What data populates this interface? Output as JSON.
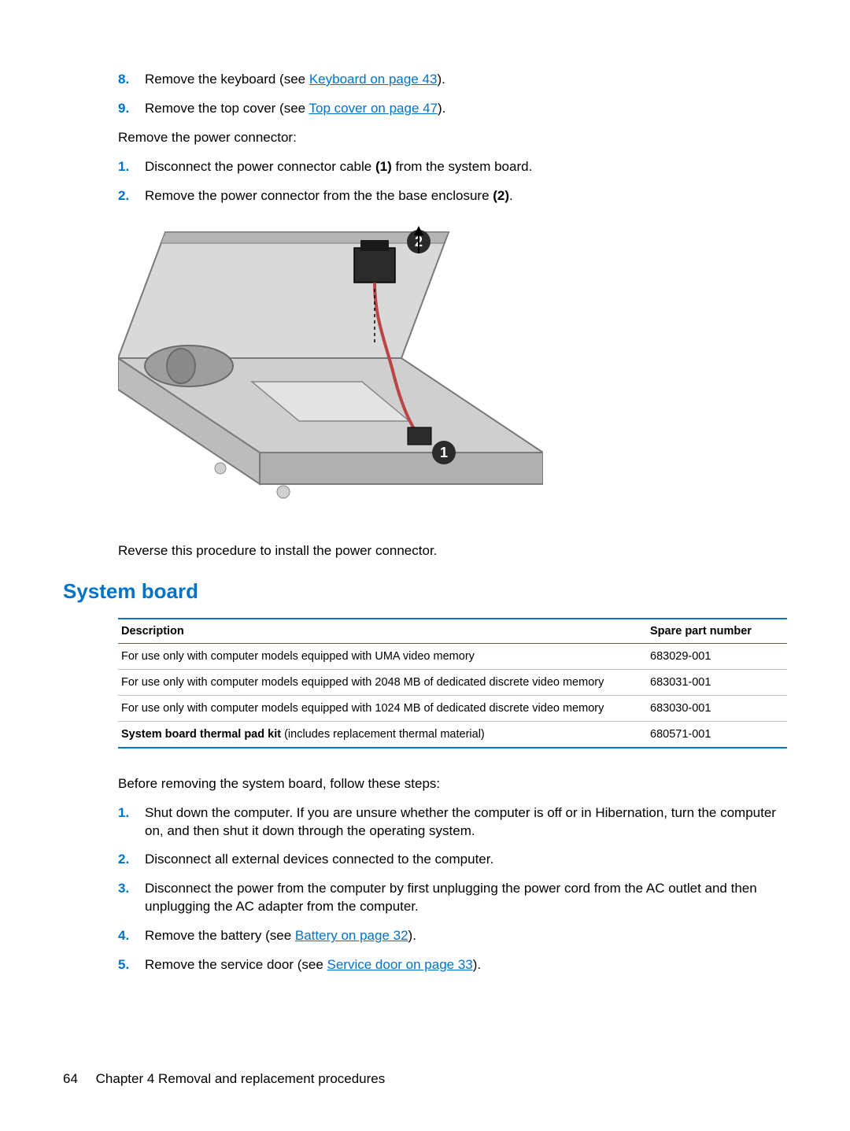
{
  "top_list": [
    {
      "num": "8.",
      "pre": "Remove the keyboard (see ",
      "link": "Keyboard on page 43",
      "post": ")."
    },
    {
      "num": "9.",
      "pre": "Remove the top cover (see ",
      "link": "Top cover on page 47",
      "post": ")."
    }
  ],
  "intro_para": "Remove the power connector:",
  "mid_list": [
    {
      "num": "1.",
      "html": "Disconnect the power connector cable <b>(1)</b> from the system board."
    },
    {
      "num": "2.",
      "html": "Remove the power connector from the the base enclosure <b>(2)</b>."
    }
  ],
  "reverse_para": "Reverse this procedure to install the power connector.",
  "section_heading": "System board",
  "table": {
    "columns": [
      "Description",
      "Spare part number"
    ],
    "rows": [
      {
        "desc": "For use only with computer models equipped with UMA video memory",
        "spn": "683029-001"
      },
      {
        "desc": "For use only with computer models equipped with 2048 MB of dedicated discrete video memory",
        "spn": "683031-001"
      },
      {
        "desc": "For use only with computer models equipped with 1024 MB of dedicated discrete video memory",
        "spn": "683030-001"
      },
      {
        "desc_bold": "System board thermal pad kit",
        "desc_rest": " (includes replacement thermal material)",
        "spn": "680571-001"
      }
    ],
    "border_color": "#0073c8",
    "row_border": "#bfbfbf"
  },
  "before_para": "Before removing the system board, follow these steps:",
  "bottom_list": [
    {
      "num": "1.",
      "html": "Shut down the computer. If you are unsure whether the computer is off or in Hibernation, turn the computer on, and then shut it down through the operating system."
    },
    {
      "num": "2.",
      "html": "Disconnect all external devices connected to the computer."
    },
    {
      "num": "3.",
      "html": "Disconnect the power from the computer by first unplugging the power cord from the AC outlet and then unplugging the AC adapter from the computer."
    },
    {
      "num": "4.",
      "pre": "Remove the battery (see ",
      "link": "Battery on page 32",
      "post": ")."
    },
    {
      "num": "5.",
      "pre": "Remove the service door (see ",
      "link": "Service door on page 33",
      "post": ")."
    }
  ],
  "footer": {
    "page": "64",
    "chapter": "Chapter 4   Removal and replacement procedures"
  },
  "colors": {
    "accent": "#0073c8",
    "text": "#000000",
    "bg": "#ffffff"
  },
  "figure": {
    "callouts": [
      "1",
      "2"
    ]
  }
}
